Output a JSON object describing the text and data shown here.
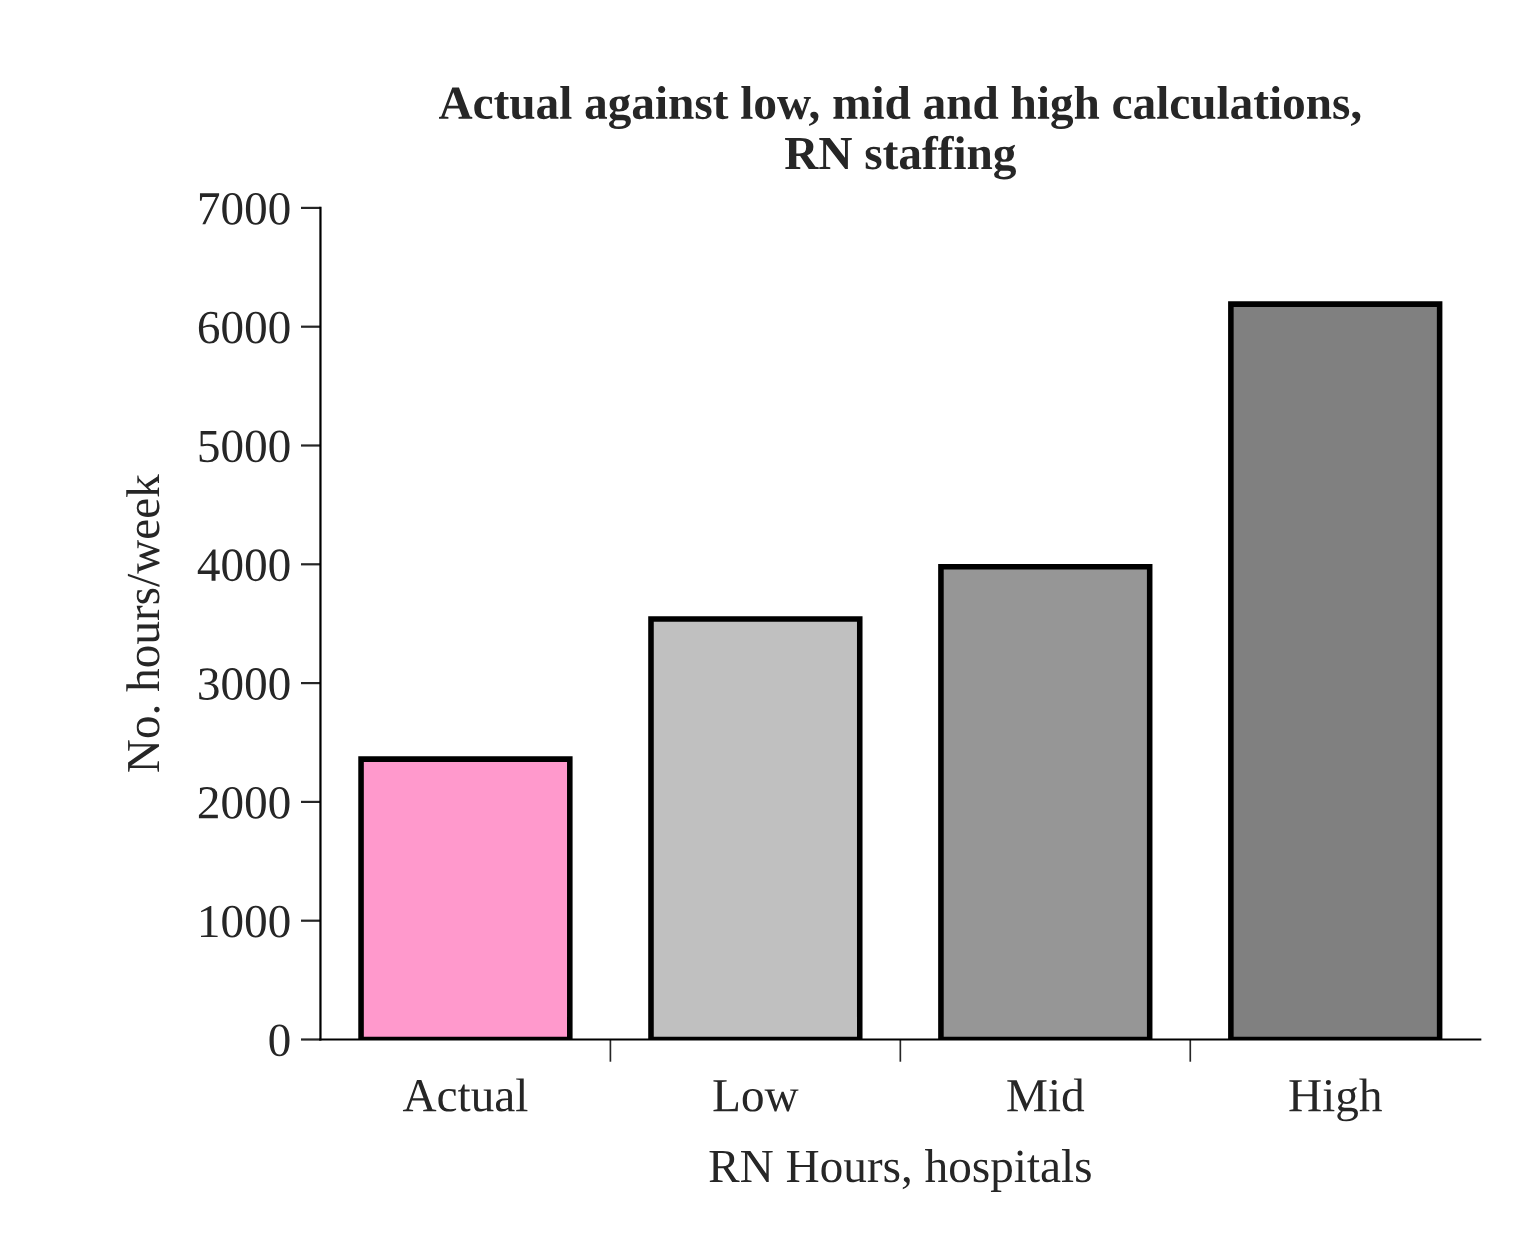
{
  "chart_data": {
    "type": "bar",
    "title": "Actual against low, mid and high calculations,\nRN staffing",
    "xlabel": "RN Hours, hospitals",
    "ylabel": "No. hours/week",
    "categories": [
      "Actual",
      "Low",
      "Mid",
      "High"
    ],
    "values": [
      2360,
      3540,
      3980,
      6190
    ],
    "colors": [
      "#ff99cc",
      "#c0c0c0",
      "#969696",
      "#808080"
    ],
    "ylim": [
      0,
      7000
    ],
    "yticks": [
      0,
      1000,
      2000,
      3000,
      4000,
      5000,
      6000,
      7000
    ],
    "grid": false,
    "legend": false
  }
}
